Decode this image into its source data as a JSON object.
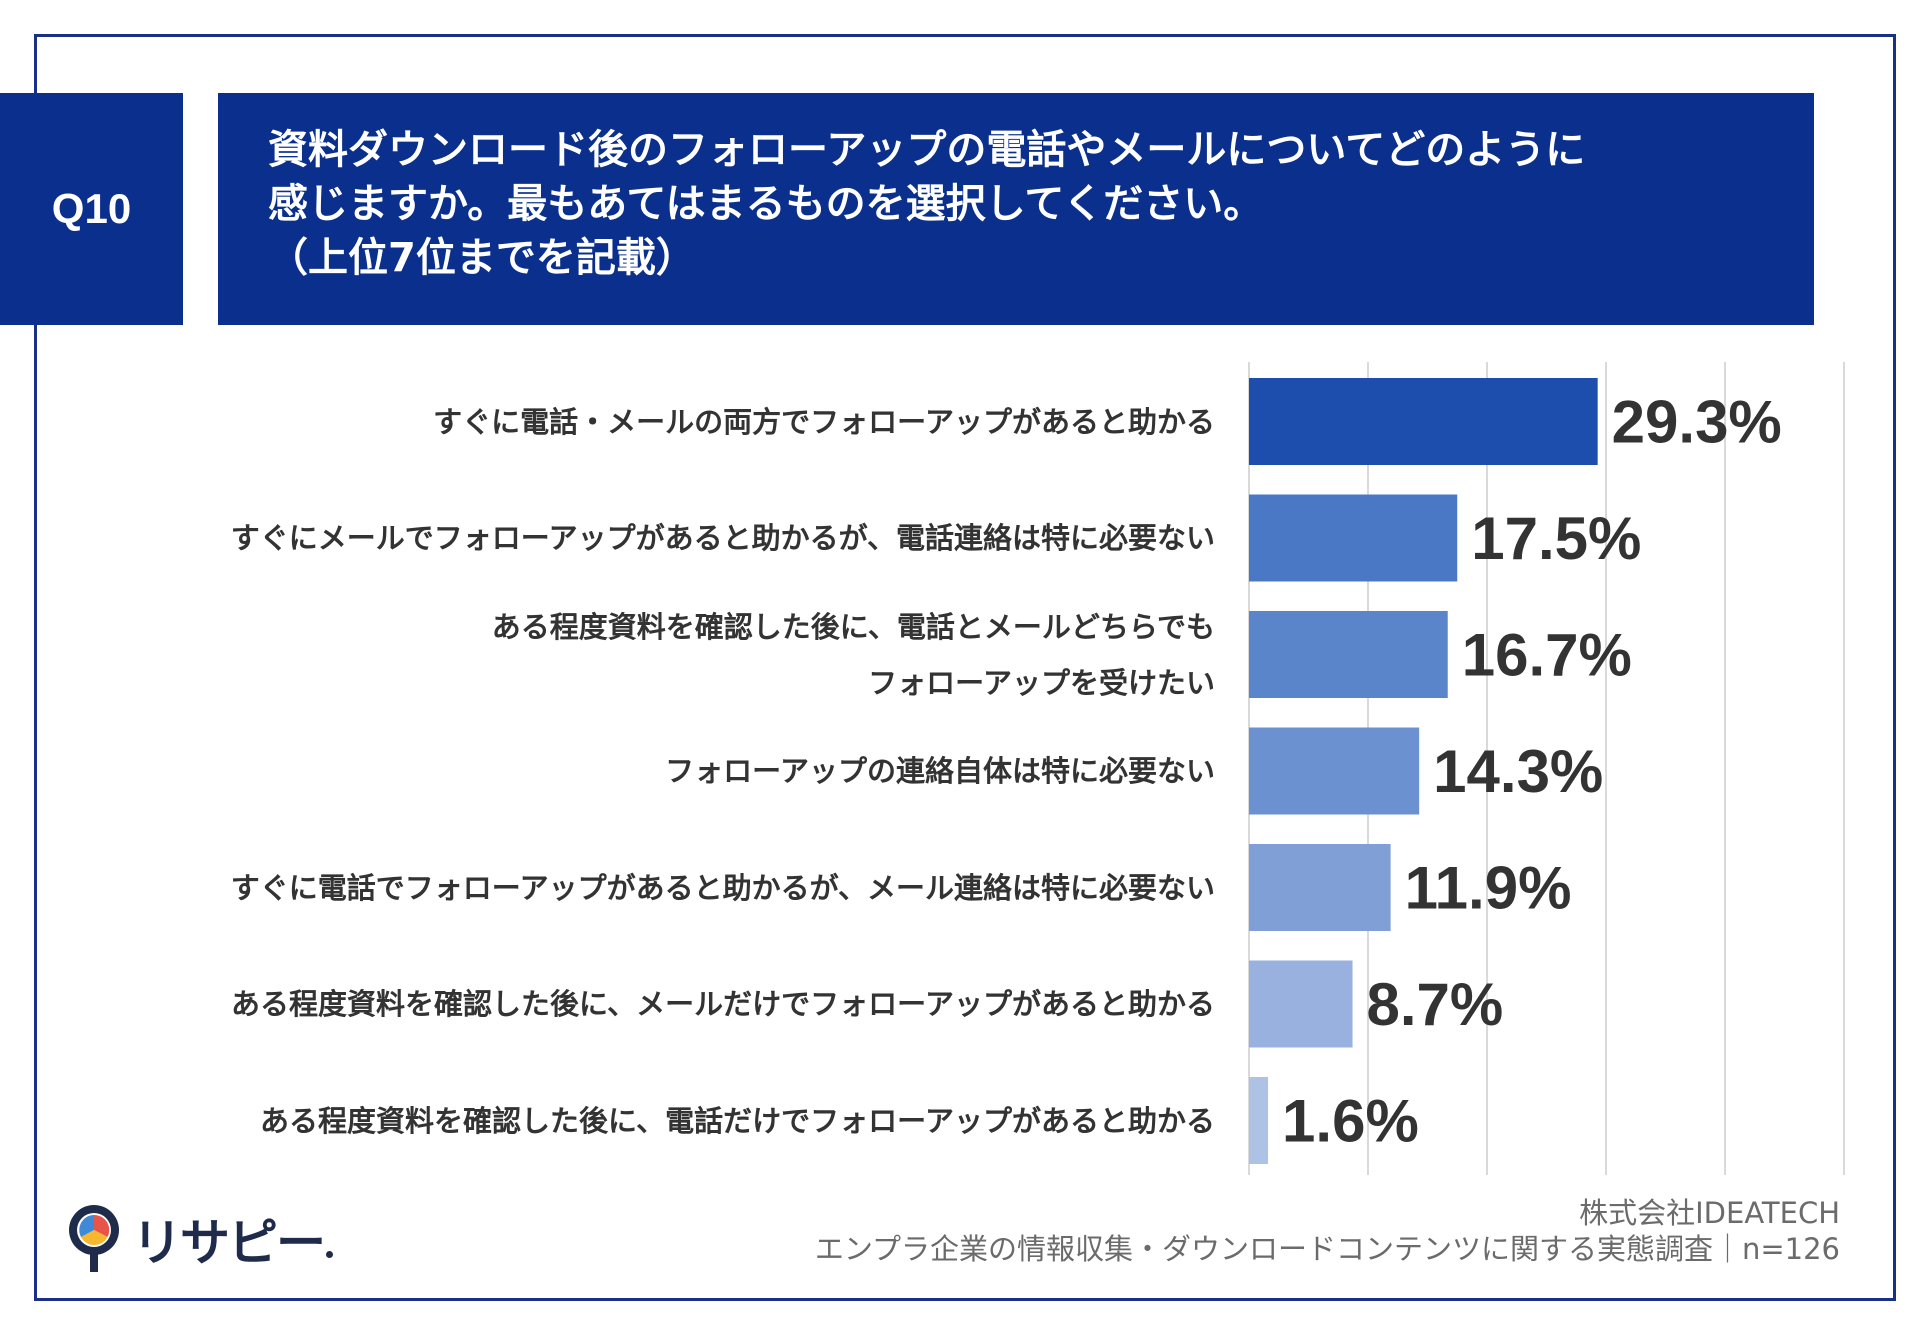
{
  "question": {
    "number": "Q10",
    "title_lines": [
      "資料ダウンロード後のフォローアップの電話やメールについてどのように",
      "感じますか。最もあてはまるものを選択してください。",
      "（上位7位までを記載）"
    ]
  },
  "chart_data": {
    "type": "bar",
    "orientation": "horizontal",
    "categories": [
      [
        "すぐに電話・メールの両方でフォローアップがあると助かる"
      ],
      [
        "すぐにメールでフォローアップがあると助かるが、電話連絡は特に必要ない"
      ],
      [
        "ある程度資料を確認した後に、電話とメールどちらでも",
        "フォローアップを受けたい"
      ],
      [
        "フォローアップの連絡自体は特に必要ない"
      ],
      [
        "すぐに電話でフォローアップがあると助かるが、メール連絡は特に必要ない"
      ],
      [
        "ある程度資料を確認した後に、メールだけでフォローアップがあると助かる"
      ],
      [
        "ある程度資料を確認した後に、電話だけでフォローアップがあると助かる"
      ]
    ],
    "values": [
      29.3,
      17.5,
      16.7,
      14.3,
      11.9,
      8.7,
      1.6
    ],
    "value_labels": [
      "29.3%",
      "17.5%",
      "16.7%",
      "14.3%",
      "11.9%",
      "8.7%",
      "1.6%"
    ],
    "bar_colors": [
      "#1d4eae",
      "#4a78c4",
      "#5b85cb",
      "#6c91d0",
      "#809fd6",
      "#98b1de",
      "#aec2e6"
    ],
    "xlim": [
      0,
      50
    ],
    "grid_step": 10,
    "grid": true
  },
  "brand": {
    "name": "リサピー"
  },
  "footer": {
    "company": "株式会社IDEATECH",
    "source": "エンプラ企業の情報収集・ダウンロードコンテンツに関する実態調査｜n=126"
  }
}
